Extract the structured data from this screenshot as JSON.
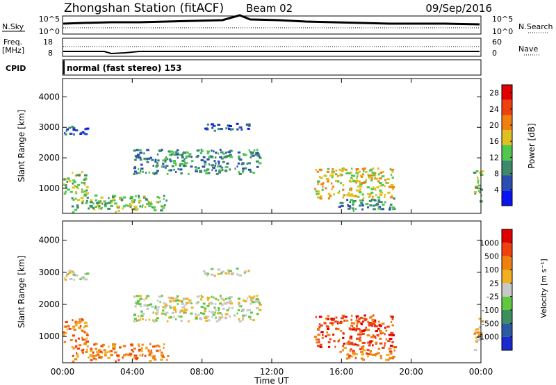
{
  "header": {
    "title": "Zhongshan Station (fitACF)",
    "beam": "Beam 02",
    "date": "09/Sep/2016"
  },
  "status_panel": {
    "nsky_label": "N.Sky",
    "nsky_ticks": [
      "10^5",
      "10^0"
    ],
    "nsearch_label": "N.Search",
    "nsearch_ticks": [
      "10^5",
      "10^0"
    ],
    "freq_label": "Freq.",
    "freq_unit": "[MHz]",
    "freq_ticks": [
      "18",
      "8"
    ],
    "nave_label": "Nave",
    "nave_ticks": [
      "60",
      "0"
    ],
    "cpid_label": "CPID",
    "cpid_value": "normal (fast stereo) 153"
  },
  "chart_data": [
    {
      "type": "heatmap",
      "name": "power",
      "xlabel": "",
      "ylabel": "Slant Range [km]",
      "x_ticks": [
        "00:00",
        "04:00",
        "08:00",
        "12:00",
        "16:00",
        "20:00",
        "00:00"
      ],
      "x_range_hours": [
        0,
        24
      ],
      "y_ticks": [
        1000,
        2000,
        3000,
        4000
      ],
      "ylim": [
        180,
        4600
      ],
      "colorbar": {
        "label": "Power [dB]",
        "ticks": [
          4,
          8,
          12,
          16,
          20,
          24,
          28
        ],
        "range": [
          0,
          30
        ],
        "colors": [
          "#0a14f0",
          "#2a4fb0",
          "#3c8a6a",
          "#50c850",
          "#e0c020",
          "#f08010",
          "#f04010",
          "#e00000"
        ]
      },
      "regions": [
        {
          "t": [
            0.0,
            1.6
          ],
          "r": [
            2800,
            3100
          ],
          "level": 1
        },
        {
          "t": [
            4.0,
            11.3
          ],
          "r": [
            1500,
            2300
          ],
          "level": 2
        },
        {
          "t": [
            8.0,
            10.8
          ],
          "r": [
            2900,
            3150
          ],
          "level": 1
        },
        {
          "t": [
            0.0,
            1.4
          ],
          "r": [
            800,
            1600
          ],
          "level": 3
        },
        {
          "t": [
            0.5,
            6.0
          ],
          "r": [
            250,
            800
          ],
          "level": 3
        },
        {
          "t": [
            14.4,
            18.9
          ],
          "r": [
            700,
            1700
          ],
          "level": 4
        },
        {
          "t": [
            15.8,
            19.0
          ],
          "r": [
            300,
            700
          ],
          "level": 2
        },
        {
          "t": [
            23.5,
            24.0
          ],
          "r": [
            600,
            1600
          ],
          "level": 3
        }
      ]
    },
    {
      "type": "heatmap",
      "name": "velocity",
      "xlabel": "Time UT",
      "ylabel": "Slant Range [km]",
      "x_ticks": [
        "00:00",
        "04:00",
        "08:00",
        "12:00",
        "16:00",
        "20:00",
        "00:00"
      ],
      "x_range_hours": [
        0,
        24
      ],
      "y_ticks": [
        1000,
        2000,
        3000,
        4000
      ],
      "ylim": [
        180,
        4600
      ],
      "colorbar": {
        "label": "Velocity [m s⁻¹]",
        "ticks": [
          "1000",
          "500",
          "100",
          "25",
          "-25",
          "-100",
          "-500",
          "-1000"
        ],
        "colors": [
          "#1a2ad0",
          "#2a5aa0",
          "#3c9060",
          "#60c840",
          "#c8c8c8",
          "#f0b020",
          "#f08010",
          "#f04010",
          "#e00000"
        ]
      },
      "regions": [
        {
          "t": [
            0.0,
            1.6
          ],
          "r": [
            2800,
            3100
          ],
          "level": 4
        },
        {
          "t": [
            4.0,
            11.3
          ],
          "r": [
            1500,
            2300
          ],
          "level": 4
        },
        {
          "t": [
            8.0,
            10.8
          ],
          "r": [
            2900,
            3150
          ],
          "level": 4
        },
        {
          "t": [
            0.0,
            1.4
          ],
          "r": [
            800,
            1600
          ],
          "level": 6
        },
        {
          "t": [
            0.5,
            6.0
          ],
          "r": [
            250,
            800
          ],
          "level": 6
        },
        {
          "t": [
            14.4,
            18.9
          ],
          "r": [
            700,
            1700
          ],
          "level": 7
        },
        {
          "t": [
            15.8,
            19.0
          ],
          "r": [
            300,
            700
          ],
          "level": 6
        },
        {
          "t": [
            23.5,
            24.0
          ],
          "r": [
            600,
            1600
          ],
          "level": 5
        }
      ]
    }
  ]
}
